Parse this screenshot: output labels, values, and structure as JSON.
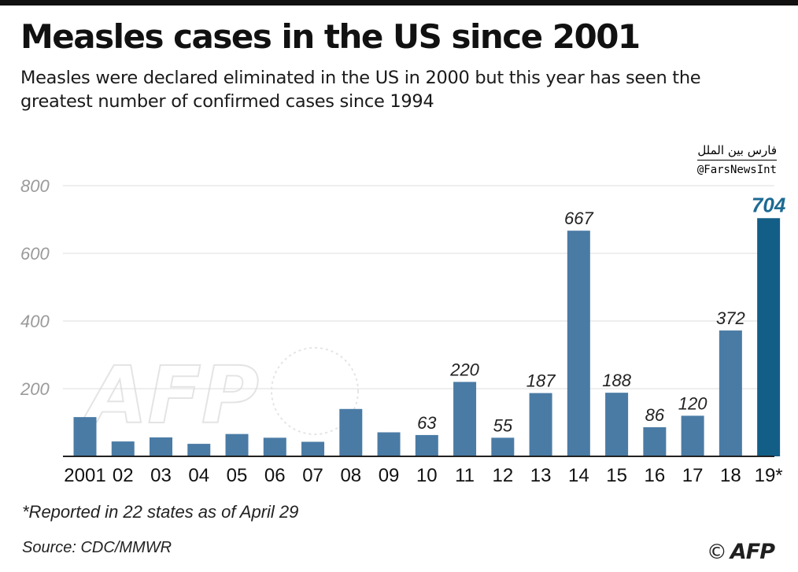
{
  "header": {
    "title": "Measles cases in the US since 2001",
    "subtitle": "Measles were declared eliminated in the US in 2000 but this year has seen the greatest number of confirmed cases since 1994"
  },
  "credit": {
    "arabic": "فارس بين الملل",
    "handle": "@FarsNewsInt"
  },
  "chart_data": {
    "type": "bar",
    "categories": [
      "2001",
      "02",
      "03",
      "04",
      "05",
      "06",
      "07",
      "08",
      "09",
      "10",
      "11",
      "12",
      "13",
      "14",
      "15",
      "16",
      "17",
      "18",
      "19*"
    ],
    "values": [
      116,
      44,
      56,
      37,
      66,
      55,
      43,
      140,
      71,
      63,
      220,
      55,
      187,
      667,
      188,
      86,
      120,
      372,
      704
    ],
    "data_labels": [
      "",
      "",
      "",
      "",
      "",
      "",
      "",
      "",
      "",
      "63",
      "220",
      "55",
      "187",
      "667",
      "188",
      "86",
      "120",
      "372",
      "704"
    ],
    "highlight_index": 18,
    "yticks": [
      200,
      400,
      600,
      800
    ],
    "ylim": [
      0,
      800
    ],
    "grid": true,
    "colors": {
      "bar": "#4a7ba5",
      "highlight": "#135e87",
      "highlight_label": "#1d6a93",
      "grid": "#dcdcdc",
      "axis": "#222222",
      "tick_label": "#9a9a9a"
    },
    "title": "Measles cases in the US since 2001",
    "xlabel": "",
    "ylabel": ""
  },
  "footnote": "*Reported in 22 states as of April 29",
  "source": "Source: CDC/MMWR",
  "logo": {
    "copyright": "©",
    "text": "AFP"
  },
  "watermark": {
    "text": "AFP"
  }
}
